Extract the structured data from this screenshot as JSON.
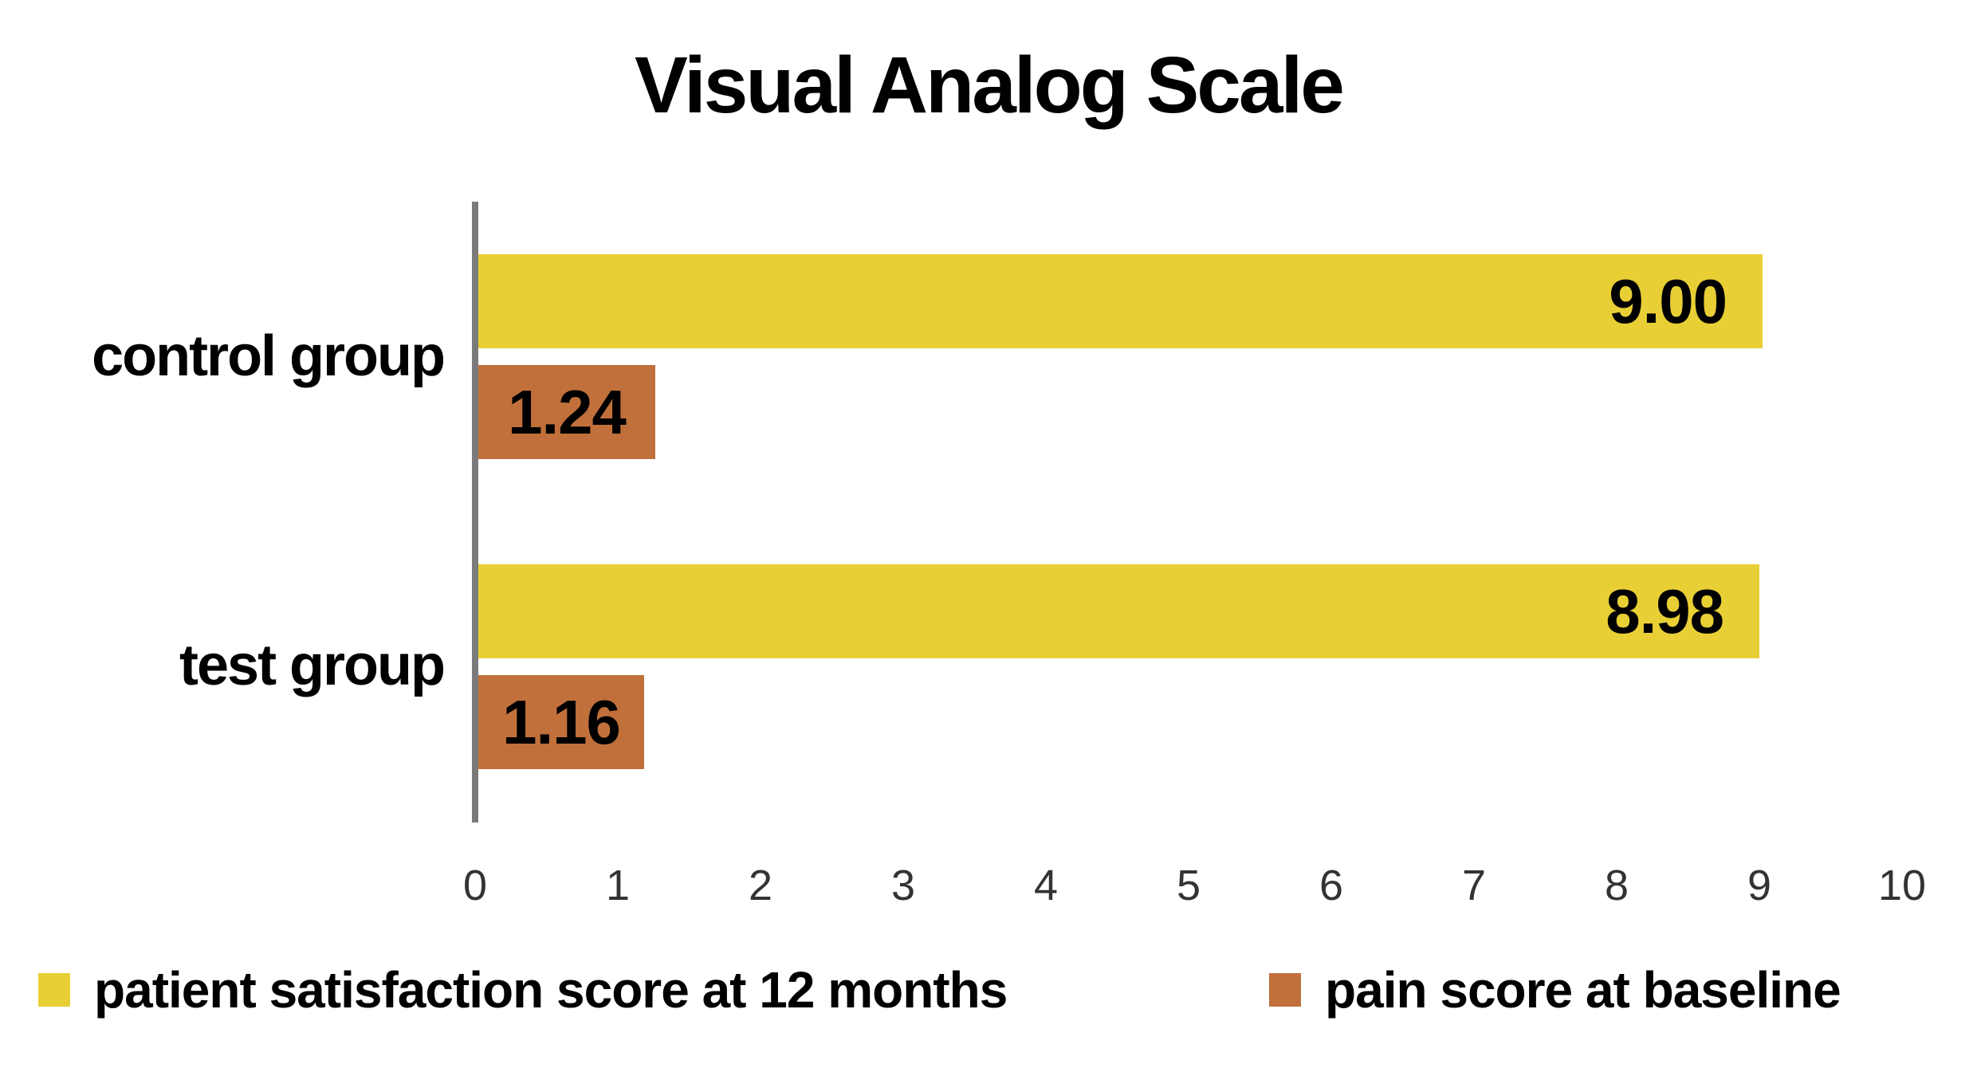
{
  "chart_data": {
    "type": "bar",
    "orientation": "horizontal",
    "title": "Visual Analog Scale",
    "categories": [
      "control group",
      "test group"
    ],
    "series": [
      {
        "name": "patient satisfaction score at 12 months",
        "color": "#E8CF35",
        "values": [
          9.0,
          8.98
        ],
        "value_labels": [
          "9.00",
          "8.98"
        ]
      },
      {
        "name": "pain score at baseline",
        "color": "#C1703B",
        "values": [
          1.24,
          1.16
        ],
        "value_labels": [
          "1.24",
          "1.16"
        ]
      }
    ],
    "xlabel": "",
    "ylabel": "",
    "xlim": [
      0,
      10
    ],
    "xticks": [
      "0",
      "1",
      "2",
      "3",
      "4",
      "5",
      "6",
      "7",
      "8",
      "9",
      "10"
    ],
    "grid": false,
    "legend_position": "bottom",
    "axis_color": "#7A7A7A",
    "tick_label_color": "#333333",
    "value_label_color": "#000000"
  }
}
